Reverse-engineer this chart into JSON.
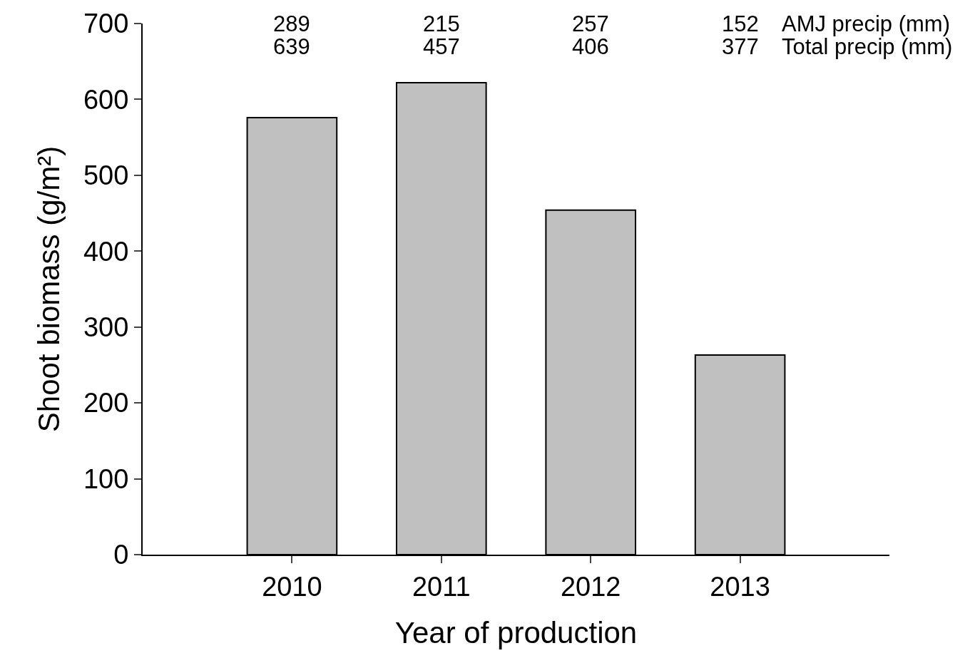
{
  "chart_data": {
    "type": "bar",
    "xlabel": "Year of production",
    "ylabel": "Shoot biomass (g/m²)",
    "categories": [
      "2010",
      "2011",
      "2012",
      "2013"
    ],
    "values": [
      576,
      622,
      454,
      263
    ],
    "color": "#c0c0c0",
    "ylim": [
      0,
      700
    ],
    "yticks": [
      0,
      100,
      200,
      300,
      400,
      500,
      600,
      700
    ],
    "annotations": [
      "289",
      "215",
      "257",
      "152",
      "AMJ precip (mm)",
      "639",
      "457",
      "406",
      "377",
      "Total precip (mm)"
    ]
  }
}
